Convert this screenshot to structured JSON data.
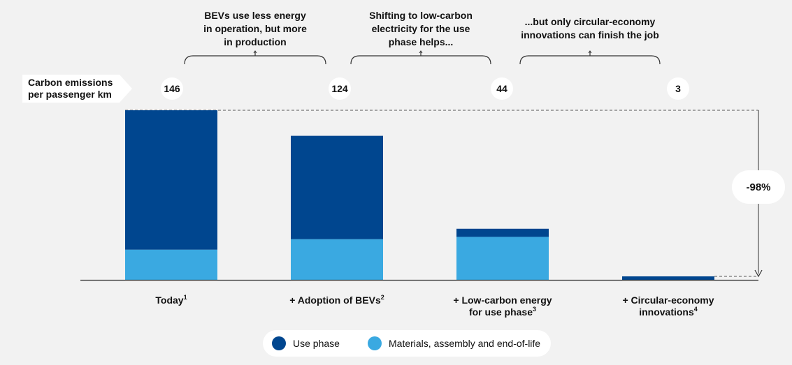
{
  "chart_data": {
    "type": "bar",
    "stacked": true,
    "ylabel": [
      "Carbon emissions",
      "per passenger km"
    ],
    "categories": [
      {
        "lines": [
          "Today"
        ],
        "sup": "1"
      },
      {
        "lines": [
          "+ Adoption of BEVs"
        ],
        "sup": "2"
      },
      {
        "lines": [
          "+ Low-carbon energy",
          "for use phase"
        ],
        "sup": "3"
      },
      {
        "lines": [
          "+ Circular-economy",
          "innovations"
        ],
        "sup": "4"
      }
    ],
    "totals": [
      "146",
      "124",
      "44",
      "3"
    ],
    "series": [
      {
        "name": "Materials, assembly and end-of-life",
        "color": "#3aa9e1",
        "values": [
          26,
          35,
          37,
          0
        ]
      },
      {
        "name": "Use phase",
        "color": "#00468f",
        "values": [
          120,
          89,
          7,
          3
        ]
      }
    ],
    "ylim": [
      0,
      146
    ],
    "annotations": [
      {
        "lines": [
          "BEVs use less energy",
          "in operation, but more",
          "in production"
        ],
        "span": [
          0,
          1
        ]
      },
      {
        "lines": [
          "Shifting to low-carbon",
          "electricity for the use",
          "phase helps..."
        ],
        "span": [
          1,
          2
        ]
      },
      {
        "lines": [
          "...but only circular-economy",
          "innovations can finish the job"
        ],
        "span": [
          2,
          3
        ]
      }
    ],
    "reduction_label": "-98%",
    "legend": [
      {
        "label": "Use phase",
        "color": "#00468f"
      },
      {
        "label": "Materials, assembly and end-of-life",
        "color": "#3aa9e1"
      }
    ]
  }
}
